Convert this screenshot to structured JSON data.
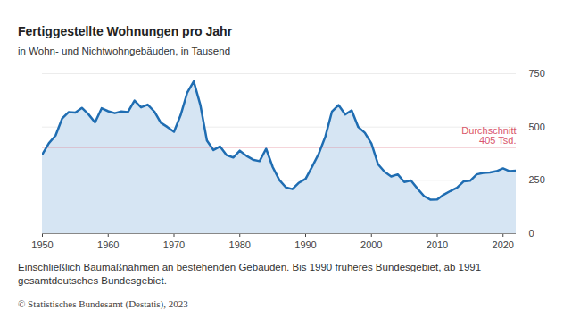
{
  "chart_data": {
    "type": "area",
    "title": "Fertiggestellte Wohnungen pro Jahr",
    "subtitle": "in Wohn- und Nichtwohngebäuden, in Tausend",
    "caption": "Einschließlich Baumaßnahmen an bestehenden Gebäuden. Bis 1990 früheres Bundesgebiet, ab 1991 gesamtdeutsches Bundesgebiet.",
    "source": "© Statistisches Bundesamt (Destatis), 2023",
    "x": [
      1950,
      1951,
      1952,
      1953,
      1954,
      1955,
      1956,
      1957,
      1958,
      1959,
      1960,
      1961,
      1962,
      1963,
      1964,
      1965,
      1966,
      1967,
      1968,
      1969,
      1970,
      1971,
      1972,
      1973,
      1974,
      1975,
      1976,
      1977,
      1978,
      1979,
      1980,
      1981,
      1982,
      1983,
      1984,
      1985,
      1986,
      1987,
      1988,
      1989,
      1990,
      1991,
      1992,
      1993,
      1994,
      1995,
      1996,
      1997,
      1998,
      1999,
      2000,
      2001,
      2002,
      2003,
      2004,
      2005,
      2006,
      2007,
      2008,
      2009,
      2010,
      2011,
      2012,
      2013,
      2014,
      2015,
      2016,
      2017,
      2018,
      2019,
      2020,
      2021,
      2022
    ],
    "values": [
      372,
      425,
      460,
      540,
      570,
      568,
      590,
      560,
      522,
      588,
      574,
      565,
      573,
      570,
      624,
      592,
      605,
      573,
      520,
      500,
      478,
      555,
      660,
      714,
      604,
      437,
      392,
      409,
      368,
      357,
      389,
      365,
      347,
      340,
      398,
      312,
      252,
      217,
      209,
      239,
      257,
      315,
      375,
      455,
      572,
      603,
      559,
      578,
      500,
      473,
      423,
      326,
      290,
      268,
      278,
      242,
      249,
      211,
      176,
      159,
      160,
      183,
      200,
      215,
      245,
      248,
      278,
      285,
      287,
      293,
      306,
      293,
      295
    ],
    "color": "#1f6db2",
    "xlim": [
      1950,
      2022
    ],
    "xticks": [
      1950,
      1960,
      1970,
      1980,
      1990,
      2000,
      2010,
      2020
    ],
    "ylim": [
      0,
      750
    ],
    "yticks": [
      0,
      250,
      500,
      750
    ],
    "grid": true,
    "reference_line": {
      "value": 405,
      "label": "Durchschnitt\n405 Tsd."
    }
  }
}
